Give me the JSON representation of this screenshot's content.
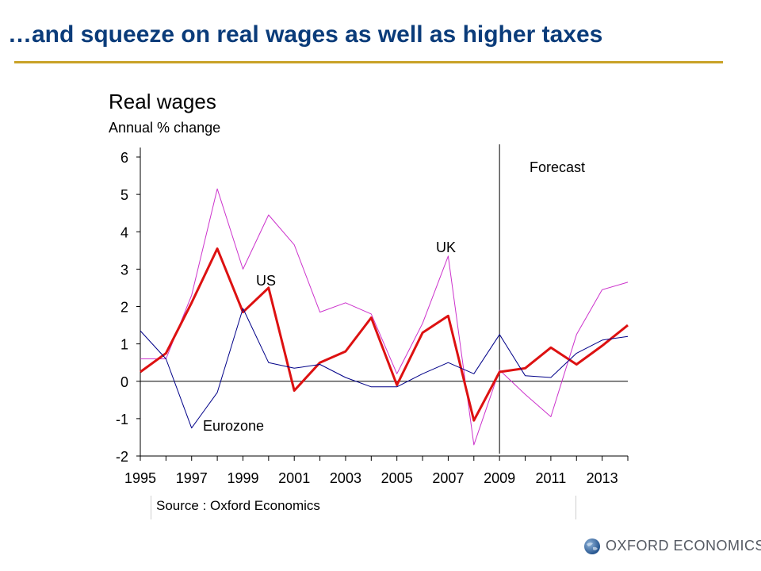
{
  "slide": {
    "title": "…and squeeze on real wages as well as higher taxes",
    "source": "Source : Oxford Economics",
    "logo_text": "OXFORD ECONOMICS",
    "accent_color": "#c9a227",
    "title_color": "#0b3c7a"
  },
  "chart_data": {
    "type": "line",
    "title": "Real wages",
    "subtitle": "Annual % change",
    "xlabel": "",
    "ylabel": "",
    "x": [
      1995,
      1996,
      1997,
      1998,
      1999,
      2000,
      2001,
      2002,
      2003,
      2004,
      2005,
      2006,
      2007,
      2008,
      2009,
      2010,
      2011,
      2012,
      2013,
      2014
    ],
    "x_tick_labels": [
      "1995",
      "1997",
      "1999",
      "2001",
      "2003",
      "2005",
      "2007",
      "2009",
      "2011",
      "2013"
    ],
    "y_tick_labels": [
      "6",
      "5",
      "4",
      "3",
      "2",
      "1",
      "0",
      "-1",
      "-2"
    ],
    "ylim": [
      -2,
      6
    ],
    "xlim": [
      1995,
      2014
    ],
    "grid": false,
    "forecast_start": 2009,
    "forecast_label": "Forecast",
    "series": [
      {
        "name": "UK",
        "color": "#cc33cc",
        "values": [
          0.6,
          0.6,
          2.3,
          5.15,
          3.0,
          4.45,
          3.65,
          1.85,
          2.1,
          1.8,
          0.2,
          1.55,
          3.35,
          -1.7,
          0.3,
          -0.35,
          -0.95,
          1.25,
          2.45,
          2.65
        ]
      },
      {
        "name": "US",
        "color": "#dd1111",
        "values": [
          0.25,
          0.75,
          2.1,
          3.55,
          1.85,
          2.5,
          -0.25,
          0.5,
          0.8,
          1.7,
          -0.1,
          1.3,
          1.75,
          -1.05,
          0.25,
          0.35,
          0.9,
          0.45,
          0.95,
          1.5
        ]
      },
      {
        "name": "Eurozone",
        "color": "#000088",
        "values": [
          1.35,
          0.6,
          -1.25,
          -0.3,
          1.95,
          0.5,
          0.35,
          0.45,
          0.1,
          -0.15,
          -0.15,
          0.2,
          0.5,
          0.2,
          1.25,
          0.15,
          0.1,
          0.75,
          1.1,
          1.2
        ]
      }
    ]
  }
}
